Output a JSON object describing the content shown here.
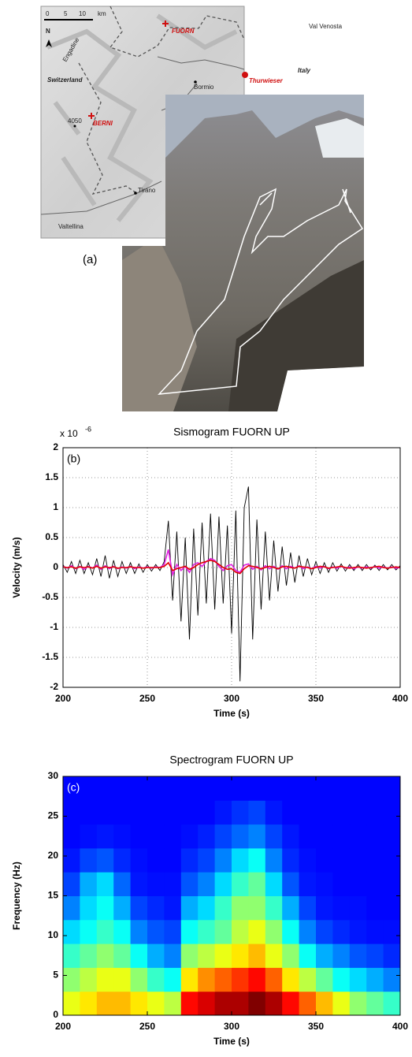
{
  "map": {
    "scale": [
      "0",
      "5",
      "10",
      "km"
    ],
    "north": "N",
    "labels": [
      "Engadine",
      "FUORN",
      "Val Venosta",
      "Italy",
      "Switzerland",
      "Bormio",
      "Thurwieser",
      "BERNI",
      "4050",
      "Tirano",
      "Valtellina"
    ],
    "panel_label": "(a)"
  },
  "chart_data": [
    {
      "type": "line",
      "title": "Sismogram FUORN UP",
      "annotation": "(b)",
      "y_multiplier": "x 10",
      "y_multiplier_exponent": "-6",
      "xlabel": "Time (s)",
      "ylabel": "Velocity (m/s)",
      "x": [
        200,
        202.5,
        205,
        207.5,
        210,
        212.5,
        215,
        217.5,
        220,
        222.5,
        225,
        227.5,
        230,
        232.5,
        235,
        237.5,
        240,
        242.5,
        245,
        247.5,
        250,
        252.5,
        255,
        257.5,
        260,
        262.5,
        265,
        267.5,
        270,
        272.5,
        275,
        277.5,
        280,
        282.5,
        285,
        287.5,
        290,
        292.5,
        295,
        297.5,
        300,
        302.5,
        305,
        307.5,
        310,
        312.5,
        315,
        317.5,
        320,
        322.5,
        325,
        327.5,
        330,
        332.5,
        335,
        337.5,
        340,
        342.5,
        345,
        347.5,
        350,
        352.5,
        355,
        357.5,
        360,
        362.5,
        365,
        367.5,
        370,
        372.5,
        375,
        377.5,
        380,
        382.5,
        385,
        387.5,
        390,
        392.5,
        395,
        397.5,
        400
      ],
      "series": [
        {
          "color": "#000000",
          "values": [
            0.05,
            -0.08,
            0.1,
            -0.1,
            0.12,
            -0.1,
            0.08,
            -0.12,
            0.15,
            -0.15,
            0.2,
            -0.18,
            0.12,
            -0.15,
            0.1,
            -0.1,
            0.08,
            -0.1,
            0.06,
            -0.08,
            0.05,
            -0.06,
            0.05,
            -0.05,
            0.1,
            0.78,
            -0.55,
            0.6,
            -0.9,
            0.5,
            -1.2,
            0.65,
            -0.8,
            0.75,
            -0.6,
            0.9,
            -0.7,
            0.85,
            -0.6,
            0.7,
            -1.1,
            0.95,
            -1.9,
            1.0,
            1.35,
            -1.2,
            0.8,
            -0.7,
            0.6,
            -0.55,
            0.45,
            -0.4,
            0.35,
            -0.3,
            0.25,
            -0.25,
            0.2,
            -0.15,
            0.15,
            -0.12,
            0.1,
            -0.1,
            0.08,
            -0.08,
            0.08,
            -0.06,
            0.06,
            -0.06,
            0.05,
            -0.05,
            0.05,
            -0.05,
            0.05,
            -0.04,
            0.04,
            -0.05,
            0.05,
            -0.04,
            0.05,
            -0.04,
            0.03
          ]
        },
        {
          "color": "#e020e0",
          "values": [
            0.02,
            -0.01,
            0.03,
            -0.02,
            0.02,
            -0.03,
            0.02,
            -0.01,
            0.04,
            -0.03,
            0.03,
            -0.02,
            0.02,
            -0.02,
            0.01,
            -0.01,
            0.02,
            -0.02,
            0.01,
            -0.01,
            0.01,
            -0.01,
            0.01,
            0,
            0.05,
            0.3,
            -0.12,
            0.05,
            -0.05,
            0.02,
            -0.08,
            0.05,
            0.08,
            0.02,
            0.1,
            0.15,
            0.12,
            0.02,
            -0.05,
            0.03,
            0.05,
            -0.05,
            -0.08,
            0.04,
            0.06,
            -0.03,
            0.02,
            -0.04,
            0.03,
            -0.02,
            0.02,
            -0.03,
            0.03,
            -0.02,
            0.02,
            -0.01,
            0.03,
            -0.02,
            0.01,
            -0.02,
            0.02,
            -0.01,
            0.02,
            -0.02,
            0.01,
            -0.01,
            0.02,
            -0.01,
            0.01,
            -0.02,
            0.01,
            -0.01,
            0.01,
            -0.01,
            0.02,
            -0.01,
            0.01,
            -0.01,
            0.01,
            -0.01,
            0
          ]
        },
        {
          "color": "#e00000",
          "values": [
            0.01,
            0,
            0.01,
            -0.01,
            0.01,
            0,
            0.01,
            -0.01,
            0.02,
            -0.01,
            0.01,
            0,
            0.01,
            -0.01,
            0,
            0,
            0.01,
            0,
            0,
            -0.01,
            0,
            0,
            0,
            0,
            0.02,
            0.08,
            -0.05,
            -0.02,
            0,
            0.02,
            -0.03,
            0,
            0.05,
            0.08,
            0.1,
            0.12,
            0.1,
            0.05,
            0,
            -0.03,
            -0.02,
            -0.08,
            -0.1,
            -0.02,
            0.03,
            0.02,
            0,
            -0.02,
            0,
            0.02,
            0,
            -0.02,
            0.01,
            0.02,
            0,
            -0.01,
            0.02,
            0.01,
            0,
            -0.02,
            0,
            0.02,
            0.01,
            -0.01,
            0,
            0.01,
            0.02,
            0,
            -0.01,
            0,
            0.01,
            0,
            -0.01,
            0,
            0.01,
            0.02,
            0,
            -0.01,
            0,
            0.01,
            0
          ]
        }
      ],
      "xlim": [
        200,
        400
      ],
      "ylim": [
        -2,
        2
      ],
      "xticks": [
        200,
        250,
        300,
        350,
        400
      ],
      "yticks": [
        -2,
        -1.5,
        -1,
        -0.5,
        0,
        0.5,
        1,
        1.5,
        2
      ],
      "grid": true
    },
    {
      "type": "heatmap",
      "title": "Spectrogram FUORN UP",
      "annotation": "(c)",
      "xlabel": "Time (s)",
      "ylabel": "Frequency (Hz)",
      "colormap": "jet",
      "x_bins": [
        200,
        210,
        220,
        230,
        240,
        250,
        260,
        270,
        280,
        290,
        300,
        310,
        320,
        330,
        340,
        350,
        360,
        370,
        380,
        390,
        400
      ],
      "y_bins": [
        0,
        3,
        6,
        9,
        12,
        15,
        18,
        21,
        24,
        27,
        30
      ],
      "z": [
        [
          0.55,
          0.6,
          0.65,
          0.65,
          0.6,
          0.55,
          0.5,
          0.85,
          0.9,
          0.95,
          0.95,
          1,
          0.95,
          0.85,
          0.75,
          0.65,
          0.55,
          0.45,
          0.4,
          0.35
        ],
        [
          0.45,
          0.5,
          0.55,
          0.55,
          0.45,
          0.35,
          0.3,
          0.6,
          0.7,
          0.75,
          0.8,
          0.85,
          0.75,
          0.6,
          0.5,
          0.4,
          0.3,
          0.25,
          0.2,
          0.15
        ],
        [
          0.35,
          0.4,
          0.45,
          0.4,
          0.3,
          0.2,
          0.15,
          0.45,
          0.5,
          0.55,
          0.6,
          0.65,
          0.55,
          0.45,
          0.3,
          0.2,
          0.15,
          0.1,
          0.08,
          0.05
        ],
        [
          0.25,
          0.3,
          0.35,
          0.3,
          0.15,
          0.1,
          0.08,
          0.3,
          0.35,
          0.4,
          0.5,
          0.55,
          0.45,
          0.3,
          0.15,
          0.08,
          0.05,
          0.03,
          0.02,
          0.02
        ],
        [
          0.15,
          0.25,
          0.3,
          0.2,
          0.08,
          0.05,
          0.03,
          0.2,
          0.25,
          0.35,
          0.45,
          0.45,
          0.35,
          0.2,
          0.08,
          0.03,
          0.02,
          0.02,
          0.01,
          0.01
        ],
        [
          0.08,
          0.2,
          0.25,
          0.12,
          0.03,
          0.02,
          0.02,
          0.1,
          0.15,
          0.25,
          0.35,
          0.4,
          0.25,
          0.1,
          0.03,
          0.02,
          0.01,
          0.01,
          0.01,
          0.01
        ],
        [
          0.03,
          0.08,
          0.1,
          0.05,
          0.02,
          0.01,
          0.01,
          0.05,
          0.08,
          0.15,
          0.25,
          0.3,
          0.15,
          0.05,
          0.02,
          0.01,
          0.01,
          0.01,
          0.01,
          0.01
        ],
        [
          0.01,
          0.02,
          0.03,
          0.02,
          0.01,
          0.01,
          0.01,
          0.02,
          0.04,
          0.08,
          0.12,
          0.15,
          0.08,
          0.03,
          0.01,
          0.01,
          0.01,
          0.01,
          0.01,
          0.01
        ],
        [
          0.01,
          0.01,
          0.01,
          0.01,
          0.01,
          0.01,
          0.01,
          0.01,
          0.01,
          0.03,
          0.06,
          0.08,
          0.03,
          0.01,
          0.01,
          0.01,
          0.01,
          0.01,
          0.01,
          0.01
        ],
        [
          0.01,
          0.01,
          0.01,
          0.01,
          0.01,
          0.01,
          0.01,
          0.01,
          0.01,
          0.01,
          0.01,
          0.01,
          0.01,
          0.01,
          0.01,
          0.01,
          0.01,
          0.01,
          0.01,
          0.01
        ]
      ],
      "xlim": [
        200,
        400
      ],
      "ylim": [
        0,
        30
      ],
      "xticks": [
        200,
        250,
        300,
        350,
        400
      ],
      "yticks": [
        0,
        5,
        10,
        15,
        20,
        25,
        30
      ],
      "grid": false
    }
  ]
}
